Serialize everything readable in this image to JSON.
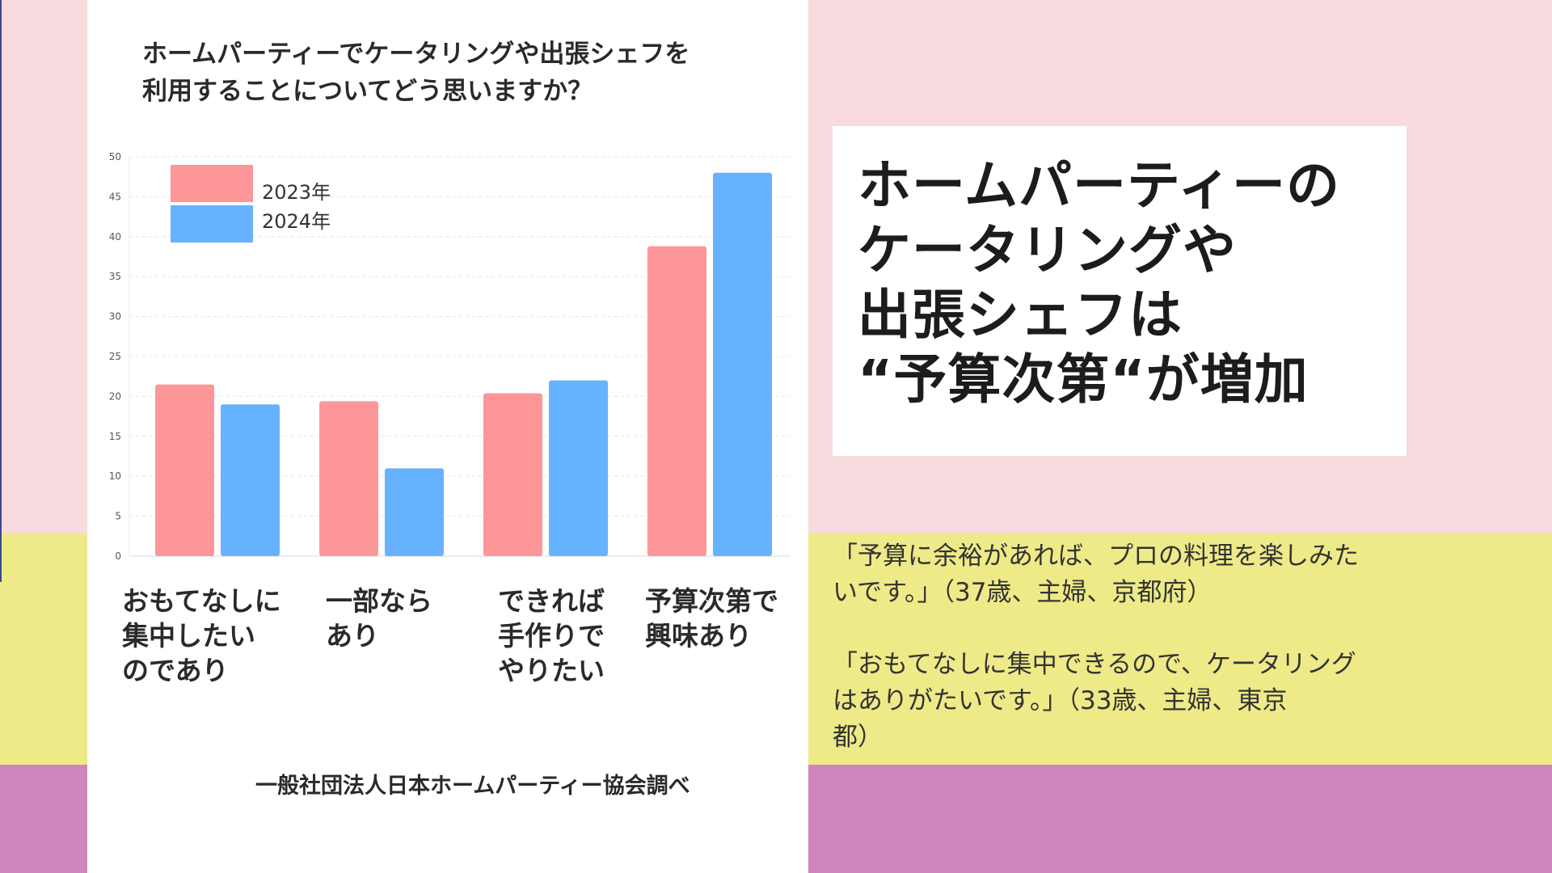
{
  "colors": {
    "band_pink": "#f7dbde",
    "band_yellow": "#eeea88",
    "band_purple": "#cf86bd",
    "series_2023": "#fd9699",
    "series_2024": "#66b2ff"
  },
  "chart_title": "ホームパーティーでケータリングや出張シェフを\n利用することについてどう思いますか？",
  "chart_data": {
    "type": "bar",
    "title": "ホームパーティーでケータリングや出張シェフを\n利用することについてどう思いますか？",
    "categories": [
      "おもてなしに\n集中したい\nのであり",
      "一部なら\nあり",
      "できれば\n手作りで\nやりたい",
      "予算次第で\n興味あり"
    ],
    "series": [
      {
        "name": "2023年",
        "color": "#fd9699",
        "values": [
          21.5,
          19.4,
          20.4,
          38.8
        ]
      },
      {
        "name": "2024年",
        "color": "#66b2ff",
        "values": [
          19.0,
          11.0,
          22.0,
          48.0
        ]
      }
    ],
    "ylim": [
      0,
      50
    ],
    "yticks": [
      0,
      5,
      10,
      15,
      20,
      25,
      30,
      35,
      40,
      45,
      50
    ],
    "grid": true,
    "legend_position": "top-left"
  },
  "source": "一般社団法人日本ホームパーティー協会調べ",
  "headline": "ホームパーティーの\nケータリングや\n出張シェフは\n“予算次第“が増加",
  "quotes": [
    "「予算に余裕があれば、プロの料理を楽しみた\nいです。」（37歳、主婦、京都府）",
    "「おもてなしに集中できるので、ケータリング\nはありがたいです。」（33歳、主婦、東京\n都）"
  ]
}
